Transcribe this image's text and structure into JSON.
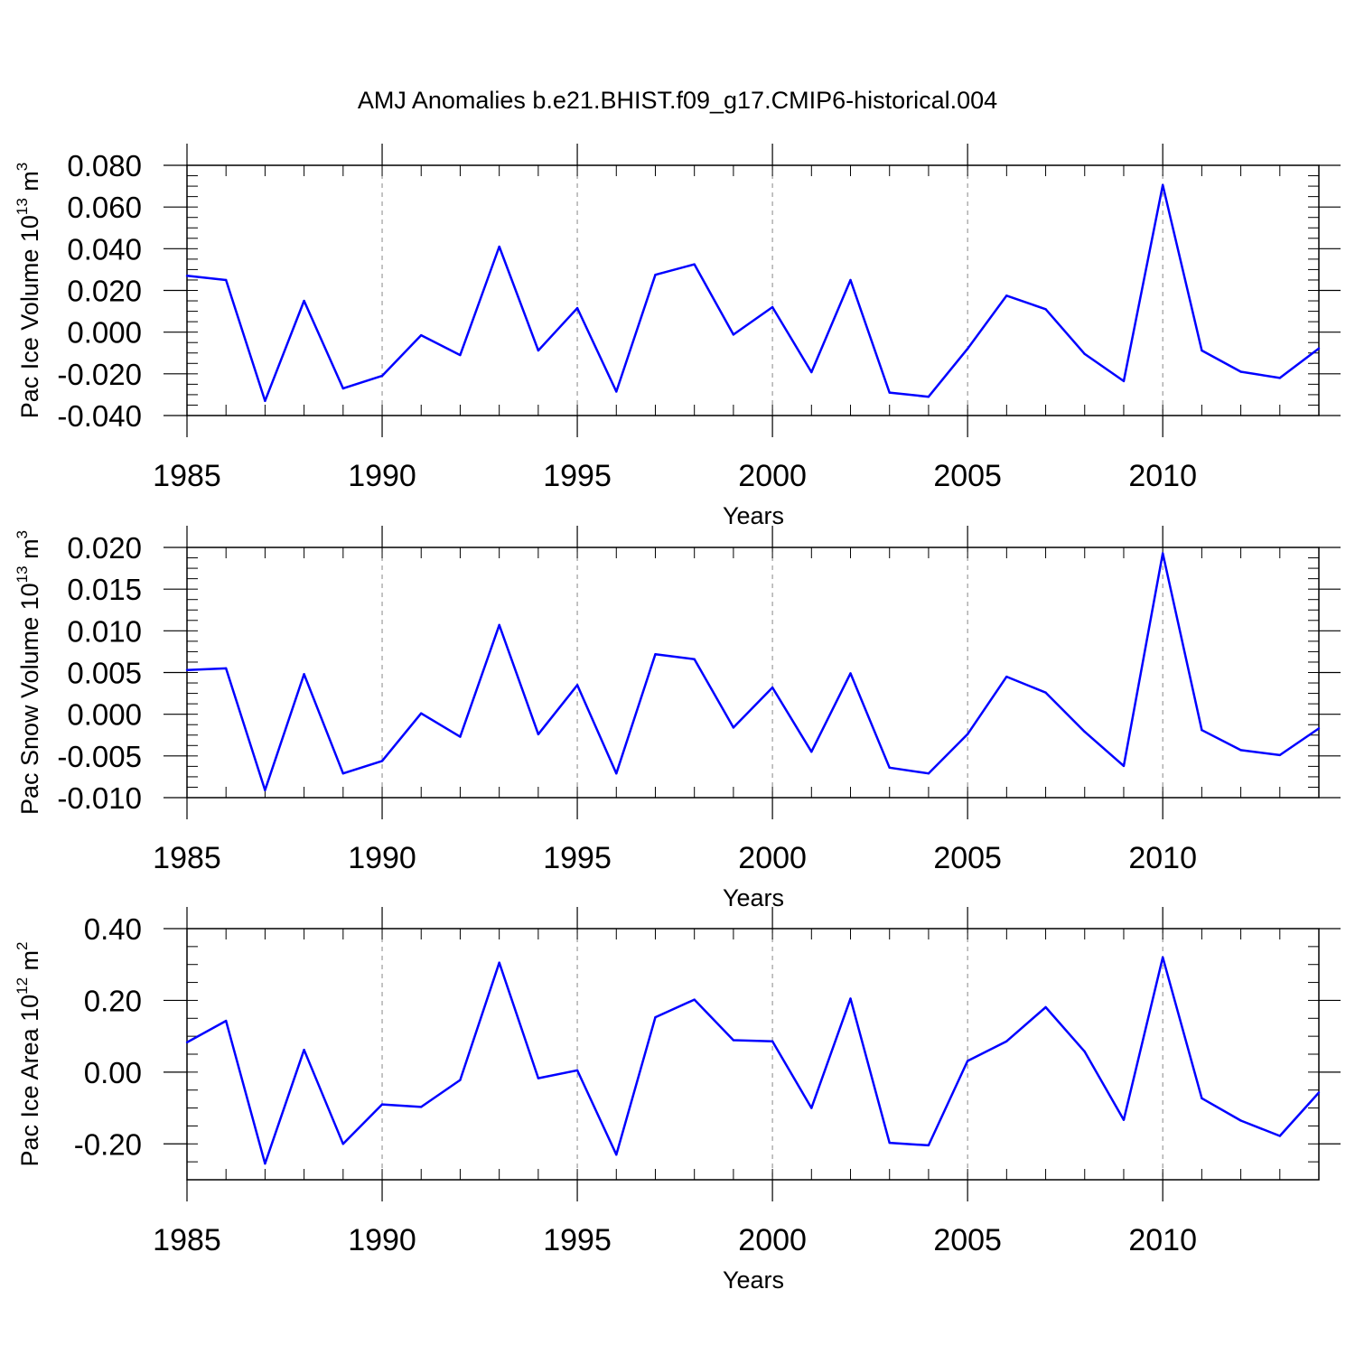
{
  "title": "AMJ Anomalies b.e21.BHIST.f09_g17.CMIP6-historical.004",
  "line_color": "#0000ff",
  "chart_data": [
    {
      "type": "line",
      "ylabel": "Pac Ice Volume 10",
      "ylabel_exp": "13",
      "ylabel_unit": "m",
      "ylabel_unit_exp": "3",
      "xlabel": "Years",
      "xlim": [
        1985,
        2014
      ],
      "ylim": [
        -0.04,
        0.08
      ],
      "yticks": [
        -0.04,
        -0.02,
        0.0,
        0.02,
        0.04,
        0.06,
        0.08
      ],
      "ytick_labels": [
        "-0.040",
        "-0.020",
        "0.000",
        "0.020",
        "0.040",
        "0.060",
        "0.080"
      ],
      "xticks": [
        1985,
        1990,
        1995,
        2000,
        2005,
        2010
      ],
      "xtick_labels": [
        "1985",
        "1990",
        "1995",
        "2000",
        "2005",
        "2010"
      ],
      "vgrid": [
        1990,
        1995,
        2000,
        2005,
        2010
      ],
      "x": [
        1985,
        1986,
        1987,
        1988,
        1989,
        1990,
        1991,
        1992,
        1993,
        1994,
        1995,
        1996,
        1997,
        1998,
        1999,
        2000,
        2001,
        2002,
        2003,
        2004,
        2005,
        2006,
        2007,
        2008,
        2009,
        2010,
        2011,
        2012,
        2013,
        2014
      ],
      "y": [
        0.027,
        0.025,
        -0.033,
        0.015,
        -0.027,
        -0.021,
        -0.0015,
        -0.011,
        0.041,
        -0.0088,
        0.0115,
        -0.0285,
        0.0275,
        0.0325,
        -0.0012,
        0.012,
        -0.0192,
        0.025,
        -0.029,
        -0.031,
        -0.008,
        0.0175,
        0.011,
        -0.0105,
        -0.0235,
        0.0705,
        -0.0088,
        -0.019,
        -0.022,
        -0.0078
      ]
    },
    {
      "type": "line",
      "ylabel": "Pac Snow Volume 10",
      "ylabel_exp": "13",
      "ylabel_unit": "m",
      "ylabel_unit_exp": "3",
      "xlabel": "Years",
      "xlim": [
        1985,
        2014
      ],
      "ylim": [
        -0.01,
        0.02
      ],
      "yticks": [
        -0.01,
        -0.005,
        0.0,
        0.005,
        0.01,
        0.015,
        0.02
      ],
      "ytick_labels": [
        "-0.010",
        "-0.005",
        "0.000",
        "0.005",
        "0.010",
        "0.015",
        "0.020"
      ],
      "xticks": [
        1985,
        1990,
        1995,
        2000,
        2005,
        2010
      ],
      "xtick_labels": [
        "1985",
        "1990",
        "1995",
        "2000",
        "2005",
        "2010"
      ],
      "vgrid": [
        1990,
        1995,
        2000,
        2005,
        2010
      ],
      "x": [
        1985,
        1986,
        1987,
        1988,
        1989,
        1990,
        1991,
        1992,
        1993,
        1994,
        1995,
        1996,
        1997,
        1998,
        1999,
        2000,
        2001,
        2002,
        2003,
        2004,
        2005,
        2006,
        2007,
        2008,
        2009,
        2010,
        2011,
        2012,
        2013,
        2014
      ],
      "y": [
        0.0053,
        0.0055,
        -0.0091,
        0.0048,
        -0.0071,
        -0.0056,
        0.0001,
        -0.0027,
        0.0107,
        -0.0024,
        0.0035,
        -0.0071,
        0.0072,
        0.0066,
        -0.0016,
        0.0032,
        -0.0045,
        0.0049,
        -0.0064,
        -0.0071,
        -0.0024,
        0.0045,
        0.0026,
        -0.0021,
        -0.0062,
        0.0193,
        -0.0019,
        -0.0043,
        -0.0049,
        -0.0017
      ]
    },
    {
      "type": "line",
      "ylabel": "Pac Ice Area 10",
      "ylabel_exp": "12",
      "ylabel_unit": "m",
      "ylabel_unit_exp": "2",
      "xlabel": "Years",
      "xlim": [
        1985,
        2014
      ],
      "ylim": [
        -0.3,
        0.4
      ],
      "yticks": [
        -0.2,
        0.0,
        0.2,
        0.4
      ],
      "ytick_labels": [
        "-0.20",
        "0.00",
        "0.20",
        "0.40"
      ],
      "xticks": [
        1985,
        1990,
        1995,
        2000,
        2005,
        2010
      ],
      "xtick_labels": [
        "1985",
        "1990",
        "1995",
        "2000",
        "2005",
        "2010"
      ],
      "vgrid": [
        1990,
        1995,
        2000,
        2005,
        2010
      ],
      "x": [
        1985,
        1986,
        1987,
        1988,
        1989,
        1990,
        1991,
        1992,
        1993,
        1994,
        1995,
        1996,
        1997,
        1998,
        1999,
        2000,
        2001,
        2002,
        2003,
        2004,
        2005,
        2006,
        2007,
        2008,
        2009,
        2010,
        2011,
        2012,
        2013,
        2014
      ],
      "y": [
        0.083,
        0.143,
        -0.255,
        0.062,
        -0.2,
        -0.09,
        -0.097,
        -0.022,
        0.305,
        -0.017,
        0.005,
        -0.23,
        0.153,
        0.202,
        0.089,
        0.086,
        -0.1,
        0.205,
        -0.197,
        -0.204,
        0.031,
        0.086,
        0.181,
        0.057,
        -0.133,
        0.32,
        -0.073,
        -0.135,
        -0.178,
        -0.057
      ]
    }
  ]
}
